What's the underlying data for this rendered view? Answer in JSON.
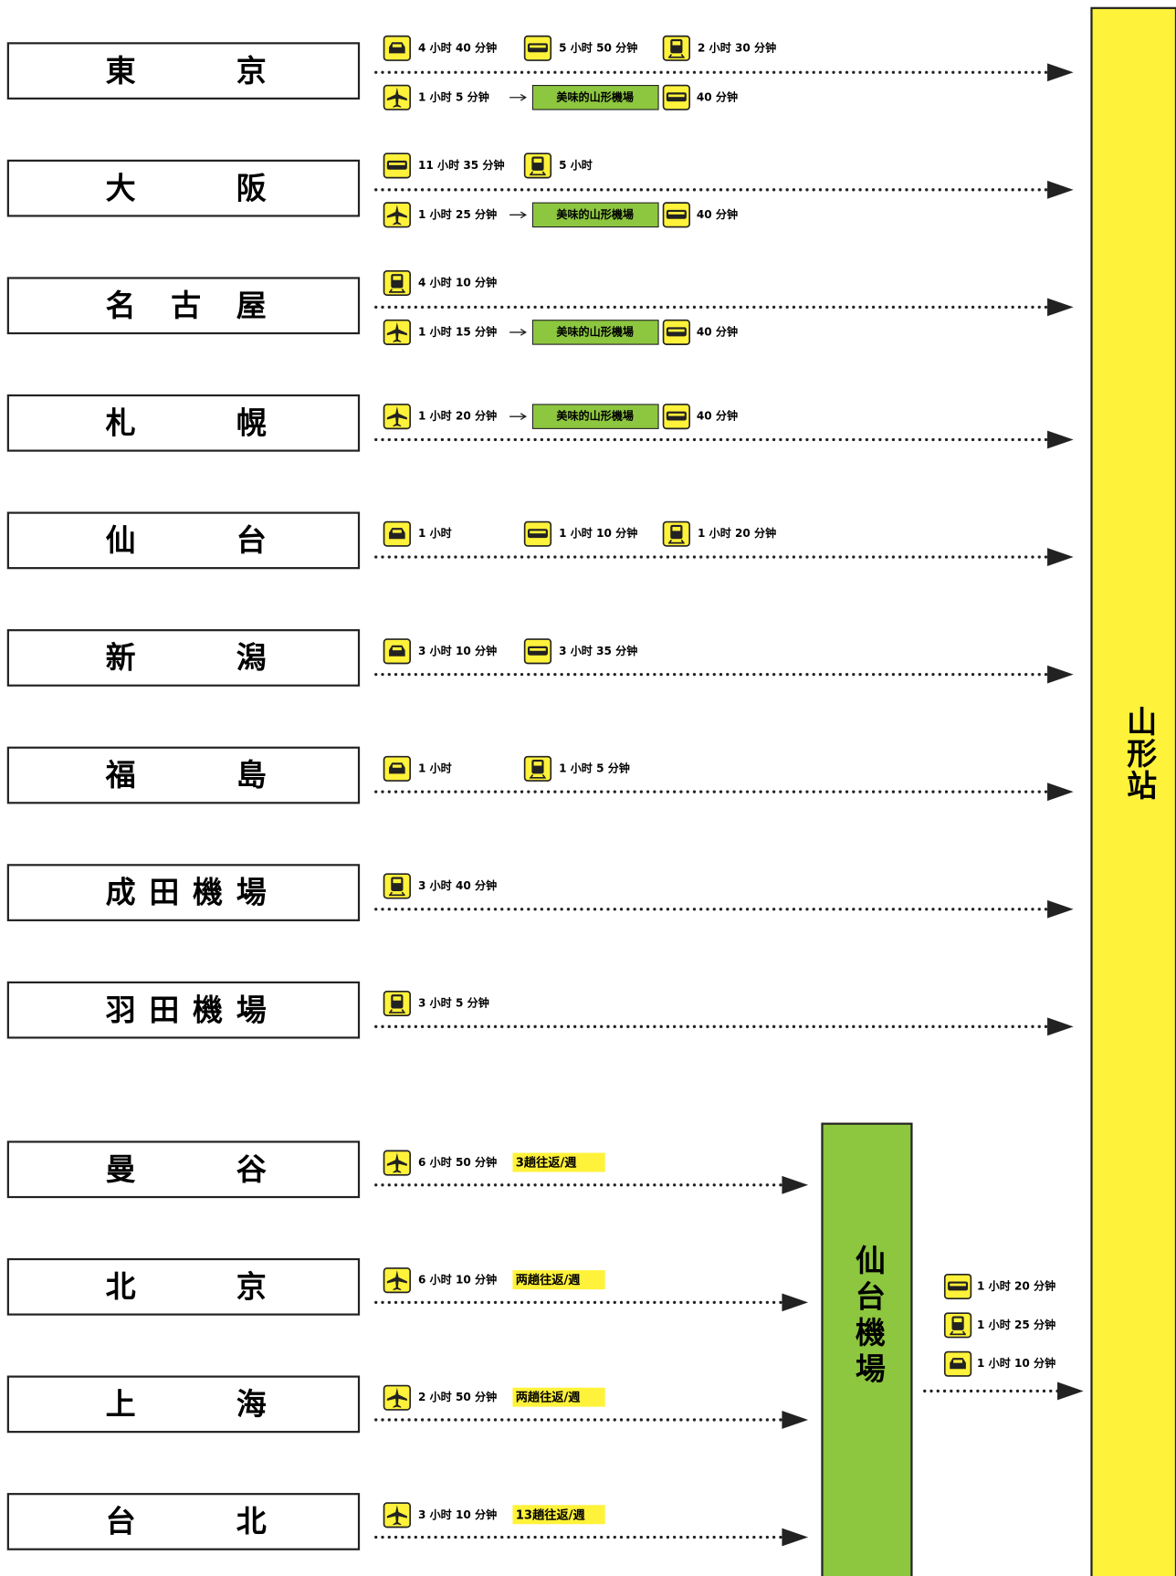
{
  "destination": "山形站",
  "hub": "仙台機場",
  "domestic": [
    {
      "city": "東京",
      "rows": [
        [
          "4 小时 40 分钟",
          "5 小时 50 分钟",
          "2 小时 30 分钟"
        ],
        [
          "1 小时 5 分钟",
          "美味的山形機場",
          "40 分钟"
        ]
      ]
    },
    {
      "city": "大阪",
      "rows": [
        [
          "11 小时 35 分钟",
          "5 小时"
        ],
        [
          "1 小时 25 分钟",
          "美味的山形機場",
          "40 分钟"
        ]
      ]
    },
    {
      "city": "名古屋",
      "rows": [
        [
          "4 小时 10 分钟"
        ],
        [
          "1 小时 15 分钟",
          "美味的山形機場",
          "40 分钟"
        ]
      ]
    },
    {
      "city": "札幌",
      "rows": [
        [
          "1 小时 20 分钟",
          "美味的山形機場",
          "40 分钟"
        ]
      ]
    },
    {
      "city": "仙台",
      "rows": [
        [
          "1 小时",
          "1 小时 10 分钟",
          "1 小时 20 分钟"
        ]
      ]
    },
    {
      "city": "新潟",
      "rows": [
        [
          "3 小时 10 分钟",
          "3 小时 35 分钟"
        ]
      ]
    },
    {
      "city": "福島",
      "rows": [
        [
          "1 小时",
          "1 小时 5 分钟"
        ]
      ]
    },
    {
      "city": "成田機場",
      "rows": [
        [
          "3 小时 40 分钟"
        ]
      ]
    },
    {
      "city": "羽田機場",
      "rows": [
        [
          "3 小时 5 分钟"
        ]
      ]
    }
  ],
  "international": [
    {
      "city": "曼谷",
      "time": "6 小时 50 分钟",
      "freq": "3趟往返/週"
    },
    {
      "city": "北京",
      "time": "6 小时 10 分钟",
      "freq": "两趟往返/週"
    },
    {
      "city": "上海",
      "time": "2 小时 50 分钟",
      "freq": "两趟往返/週"
    },
    {
      "city": "台北",
      "time": "3 小时 10 分钟",
      "freq": "13趟往返/週"
    }
  ],
  "hub_routes": [
    "1 小时 20 分钟",
    "1 小时 25 分钟",
    "1 小时 10 分钟"
  ]
}
